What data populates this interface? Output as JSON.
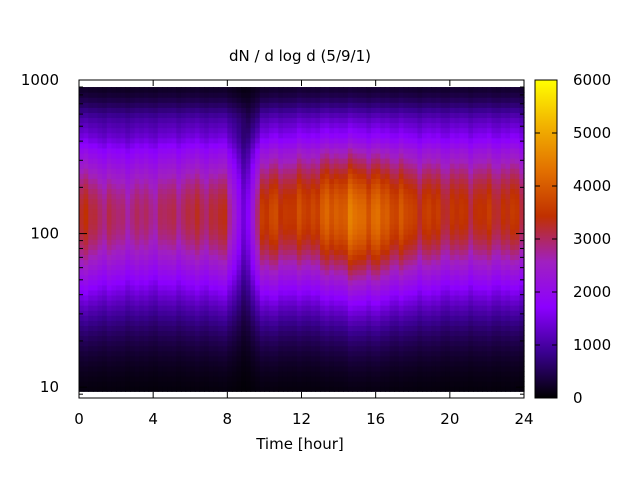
{
  "chart_data": {
    "type": "heatmap",
    "title": "dN / d log d (5/9/1)",
    "xlabel": "Time [hour]",
    "ylabel": "",
    "xlim": [
      0,
      24
    ],
    "ylim": [
      8.5,
      1000
    ],
    "y_scale": "log",
    "x_ticks": [
      0,
      4,
      8,
      12,
      16,
      20,
      24
    ],
    "x_tick_labels": [
      "0",
      "4",
      "8",
      "12",
      "16",
      "20",
      "24"
    ],
    "y_ticks": [
      10,
      100,
      1000
    ],
    "y_tick_labels": [
      "10",
      "100",
      "1000"
    ],
    "colorbar": {
      "range": [
        0,
        6000
      ],
      "ticks": [
        0,
        1000,
        2000,
        3000,
        4000,
        5000,
        6000
      ],
      "tick_labels": [
        "0",
        "1000",
        "2000",
        "3000",
        "4000",
        "5000",
        "6000"
      ],
      "colors": [
        "#000000",
        "#3a0090",
        "#8c00ff",
        "#a020c0",
        "#c03000",
        "#e27000",
        "#f2b200",
        "#ffff00"
      ]
    },
    "data_extent": {
      "x": [
        0,
        24
      ],
      "y": [
        9.4,
        900
      ]
    },
    "peak_diameter": {
      "times": [
        0,
        2,
        4,
        6,
        8,
        9,
        9.8,
        12,
        14,
        15,
        16,
        17,
        18,
        20,
        22,
        24
      ],
      "values": [
        130,
        130,
        135,
        135,
        130,
        130,
        130,
        140,
        135,
        130,
        130,
        135,
        135,
        140,
        140,
        140
      ]
    },
    "peak_intensity": {
      "times": [
        0,
        2,
        4,
        6,
        8,
        9,
        9.8,
        12,
        14,
        15,
        16,
        17,
        18,
        20,
        22,
        24
      ],
      "values": [
        3300,
        2900,
        2900,
        3100,
        3200,
        1200,
        3600,
        3600,
        4100,
        4300,
        4100,
        3900,
        3600,
        3400,
        3400,
        3400
      ]
    },
    "grid": false,
    "legend": "colorbar-right"
  }
}
